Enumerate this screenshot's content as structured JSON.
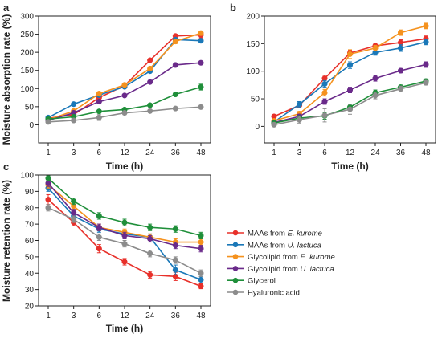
{
  "colors": {
    "MAAs from E. kurome": "#e8302a",
    "MAAs from U. lactuca": "#1a78b8",
    "Glycolipid from E. kurome": "#f5921e",
    "Glycolipid from U. lactuca": "#6a2a8a",
    "Glycerol": "#1f8f3a",
    "Hyaluronic acid": "#8c8c8c"
  },
  "legend": [
    {
      "prefix": "MAAs from ",
      "species": "E. kurome"
    },
    {
      "prefix": "MAAs from ",
      "species": "U. lactuca"
    },
    {
      "prefix": "Glycolipid from ",
      "species": "E. kurome"
    },
    {
      "prefix": "Glycolipid from ",
      "species": "U. lactuca"
    },
    {
      "prefix": "Glycerol",
      "species": ""
    },
    {
      "prefix": "Hyaluronic acid",
      "species": ""
    }
  ],
  "chart_data": [
    {
      "panel": "a",
      "type": "line",
      "xlabel": "Time (h)",
      "ylabel": "Moisture absorption rate (%)",
      "categories": [
        "1",
        "3",
        "6",
        "12",
        "24",
        "36",
        "48"
      ],
      "ylim": [
        -50,
        300
      ],
      "yticks": [
        0,
        50,
        100,
        150,
        200,
        250,
        300
      ],
      "series": [
        {
          "name": "MAAs from E. kurome",
          "values": [
            18,
            28,
            75,
            108,
            178,
            245,
            248
          ],
          "errors": [
            4,
            4,
            5,
            4,
            4,
            5,
            8
          ]
        },
        {
          "name": "MAAs from U. lactuca",
          "values": [
            20,
            57,
            82,
            105,
            148,
            235,
            232
          ],
          "errors": [
            4,
            4,
            5,
            4,
            4,
            5,
            5
          ]
        },
        {
          "name": "Glycolipid from E. kurome",
          "values": [
            14,
            38,
            86,
            110,
            155,
            230,
            253
          ],
          "errors": [
            4,
            4,
            5,
            4,
            5,
            6,
            6
          ]
        },
        {
          "name": "Glycolipid from U. lactuca",
          "values": [
            12,
            33,
            64,
            81,
            118,
            165,
            171
          ],
          "errors": [
            3,
            4,
            5,
            4,
            4,
            4,
            5
          ]
        },
        {
          "name": "Glycerol",
          "values": [
            16,
            22,
            37,
            42,
            54,
            84,
            104
          ],
          "errors": [
            3,
            4,
            5,
            4,
            4,
            4,
            8
          ]
        },
        {
          "name": "Hyaluronic acid",
          "values": [
            8,
            12,
            20,
            33,
            38,
            45,
            49
          ],
          "errors": [
            3,
            4,
            8,
            5,
            4,
            4,
            5
          ]
        }
      ]
    },
    {
      "panel": "b",
      "type": "line",
      "xlabel": "Time (h)",
      "ylabel": "",
      "categories": [
        "1",
        "3",
        "6",
        "12",
        "24",
        "36",
        "48"
      ],
      "ylim": [
        -30,
        200
      ],
      "yticks": [
        0,
        50,
        100,
        150,
        200
      ],
      "series": [
        {
          "name": "MAAs from E. kurome",
          "values": [
            18,
            38,
            87,
            133,
            146,
            152,
            159
          ],
          "errors": [
            3,
            4,
            4,
            5,
            4,
            5,
            5
          ]
        },
        {
          "name": "MAAs from U. lactuca",
          "values": [
            8,
            40,
            77,
            111,
            134,
            142,
            153
          ],
          "errors": [
            3,
            5,
            6,
            6,
            5,
            6,
            5
          ]
        },
        {
          "name": "Glycolipid from E. kurome",
          "values": [
            10,
            23,
            61,
            131,
            142,
            170,
            182
          ],
          "errors": [
            3,
            4,
            6,
            8,
            5,
            5,
            5
          ]
        },
        {
          "name": "Glycolipid from U. lactuca",
          "values": [
            7,
            18,
            45,
            66,
            87,
            101,
            112
          ],
          "errors": [
            3,
            4,
            5,
            5,
            5,
            4,
            5
          ]
        },
        {
          "name": "Glycerol",
          "values": [
            6,
            15,
            19,
            35,
            61,
            71,
            82
          ],
          "errors": [
            3,
            4,
            6,
            5,
            5,
            4,
            4
          ]
        },
        {
          "name": "Hyaluronic acid",
          "values": [
            3,
            12,
            20,
            31,
            56,
            68,
            79
          ],
          "errors": [
            3,
            6,
            12,
            9,
            6,
            5,
            4
          ]
        }
      ]
    },
    {
      "panel": "c",
      "type": "line",
      "xlabel": "Time (h)",
      "ylabel": "Moisture retention rate (%)",
      "categories": [
        "1",
        "3",
        "6",
        "12",
        "24",
        "36",
        "48"
      ],
      "ylim": [
        20,
        100
      ],
      "yticks": [
        20,
        30,
        40,
        50,
        60,
        70,
        80,
        90,
        100
      ],
      "series": [
        {
          "name": "MAAs from E. kurome",
          "values": [
            85,
            71,
            55,
            47,
            39,
            38,
            32
          ],
          "errors": [
            3,
            2,
            2.5,
            2,
            2,
            2.5,
            1.5
          ]
        },
        {
          "name": "MAAs from U. lactuca",
          "values": [
            92,
            75,
            67,
            64,
            62,
            42,
            36
          ],
          "errors": [
            2,
            2,
            2,
            2,
            2,
            3,
            2
          ]
        },
        {
          "name": "Glycolipid from E. kurome",
          "values": [
            94,
            81,
            68,
            65,
            62,
            59,
            59
          ],
          "errors": [
            2,
            2,
            2,
            2,
            2,
            2,
            2
          ]
        },
        {
          "name": "Glycolipid from U. lactuca",
          "values": [
            95,
            77,
            68,
            63,
            61,
            57,
            55
          ],
          "errors": [
            2,
            2,
            2,
            2,
            2,
            2,
            2
          ]
        },
        {
          "name": "Glycerol",
          "values": [
            98,
            84,
            75,
            71,
            68,
            67,
            63
          ],
          "errors": [
            1.5,
            2,
            2,
            2,
            2,
            2,
            2
          ]
        },
        {
          "name": "Hyaluronic acid",
          "values": [
            80,
            73,
            62,
            58,
            52,
            48,
            40
          ],
          "errors": [
            2,
            2,
            2,
            2,
            2,
            2,
            2
          ]
        }
      ]
    }
  ]
}
